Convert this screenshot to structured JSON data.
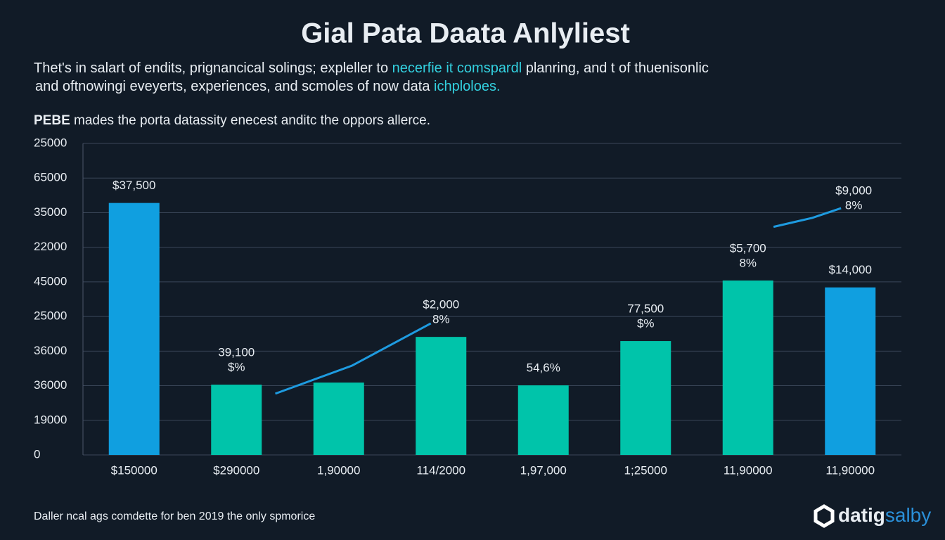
{
  "chart_data": {
    "type": "bar",
    "title": "Gial Pata Daata Anlyliest",
    "subtitle": [
      [
        {
          "text": "Thet's in salart of endits, prignancical solings; expleller to ",
          "highlight": false
        },
        {
          "text": "necerfie it comspardl",
          "highlight": true
        },
        {
          "text": " planring, and t of thuenisonlic",
          "highlight": false
        }
      ],
      [
        {
          "text": "and oftnowingi eveyerts, experiences, and scmoles of now data ",
          "highlight": false
        },
        {
          "text": "ichploloes.",
          "highlight": true
        }
      ]
    ],
    "note": {
      "bold": "PEBE",
      "text": " mades the porta datassity enecest anditc the oppors allerce."
    },
    "footer": "Daller ncal ags comdette for ben 2019 the only spmorice",
    "brand": [
      "datig",
      "salby"
    ],
    "categories": [
      "$150000",
      "$290000",
      "1,90000",
      "114/2000",
      "1,97,000",
      "1;25000",
      "11,90000",
      "11,90000"
    ],
    "values": [
      7.28,
      2.03,
      2.09,
      3.41,
      2.01,
      3.29,
      5.04,
      4.84
    ],
    "colors": [
      "#109fe0",
      "#00c4aa",
      "#00c4aa",
      "#00c4aa",
      "#00c4aa",
      "#00c4aa",
      "#00c4aa",
      "#109fe0"
    ],
    "bar_labels": [
      [
        "$37,500"
      ],
      [
        "39,100",
        "$%"
      ],
      null,
      [
        "$2,000",
        "8%"
      ],
      [
        "54,6%"
      ],
      [
        "77,500",
        "$%"
      ],
      [
        "$5,700",
        "8%"
      ],
      [
        "$14,000"
      ]
    ],
    "line": {
      "color": "#1e9be0",
      "x": [
        1.38,
        2.13,
        2.9,
        null,
        6.25,
        6.63,
        6.91
      ],
      "values": [
        1.77,
        2.58,
        3.8,
        null,
        6.59,
        6.85,
        7.13
      ],
      "end_label": [
        "$9,000",
        "8%"
      ]
    },
    "ylim": [
      0,
      9
    ],
    "yticks": [
      0,
      {
        "value": 1,
        "label": "19000"
      },
      {
        "value": 2,
        "label": "36000"
      },
      {
        "value": 3,
        "label": "36000"
      },
      {
        "value": 4,
        "label": "25000"
      },
      {
        "value": 5,
        "label": "45000"
      },
      {
        "value": 6,
        "label": "22000"
      },
      {
        "value": 7,
        "label": "35000"
      },
      {
        "value": 8,
        "label": "65000"
      },
      {
        "value": 9,
        "label": "25000"
      }
    ],
    "grid": true
  }
}
